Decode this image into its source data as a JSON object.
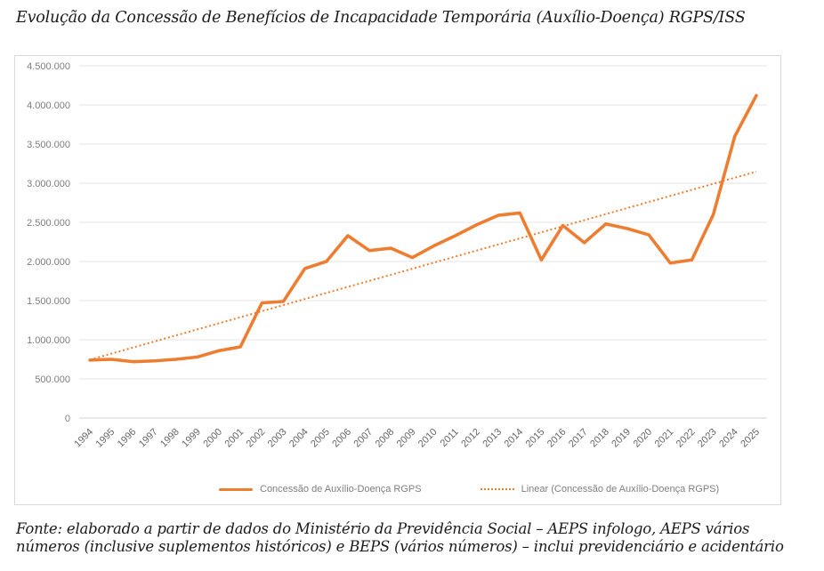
{
  "page": {
    "title": "Evolução da Concessão de Benefícios de Incapacidade Temporária (Auxílio-Doença) RGPS/ISS",
    "source_note": "Fonte: elaborado a partir de dados do Ministério da Previdência Social – AEPS infologo, AEPS vários números (inclusive suplementos históricos) e BEPS (vários números) – inclui previdenciário e acidentário"
  },
  "chart_data": {
    "type": "line",
    "title": "",
    "xlabel": "",
    "ylabel": "",
    "categories": [
      "1994",
      "1995",
      "1996",
      "1997",
      "1998",
      "1999",
      "2000",
      "2001",
      "2002",
      "2003",
      "2004",
      "2005",
      "2006",
      "2007",
      "2008",
      "2009",
      "2010",
      "2011",
      "2012",
      "2013",
      "2014",
      "2015",
      "2016",
      "2017",
      "2018",
      "2019",
      "2020",
      "2021",
      "2022",
      "2023",
      "2024",
      "2025"
    ],
    "series": [
      {
        "name": "Concessão de Auxílio-Doença RGPS",
        "style": "solid",
        "color": "#ED7D31",
        "values": [
          740000,
          750000,
          720000,
          730000,
          750000,
          780000,
          860000,
          910000,
          1470000,
          1490000,
          1910000,
          2000000,
          2330000,
          2140000,
          2170000,
          2050000,
          2200000,
          2330000,
          2470000,
          2590000,
          2620000,
          2020000,
          2460000,
          2240000,
          2480000,
          2420000,
          2340000,
          1980000,
          2020000,
          2600000,
          3600000,
          4120000
        ]
      },
      {
        "name": "Linear (Concessão de Auxílio-Doença RGPS)",
        "style": "dotted",
        "color": "#ED7D31",
        "trendline_of": 0
      }
    ],
    "y_axis": {
      "min": 0,
      "max": 4500000,
      "step": 500000,
      "tick_labels": [
        "0",
        "500.000",
        "1.000.000",
        "1.500.000",
        "2.000.000",
        "2.500.000",
        "3.000.000",
        "3.500.000",
        "4.000.000",
        "4.500.000"
      ]
    },
    "x_axis": {
      "label_rotation": 45
    },
    "grid": true,
    "grid_color": "#e4e4e4",
    "axis_line_color": "#d2d2d2",
    "y_label_color": "#7f7f7f",
    "x_label_color": "#666666",
    "legend_position": "bottom"
  }
}
